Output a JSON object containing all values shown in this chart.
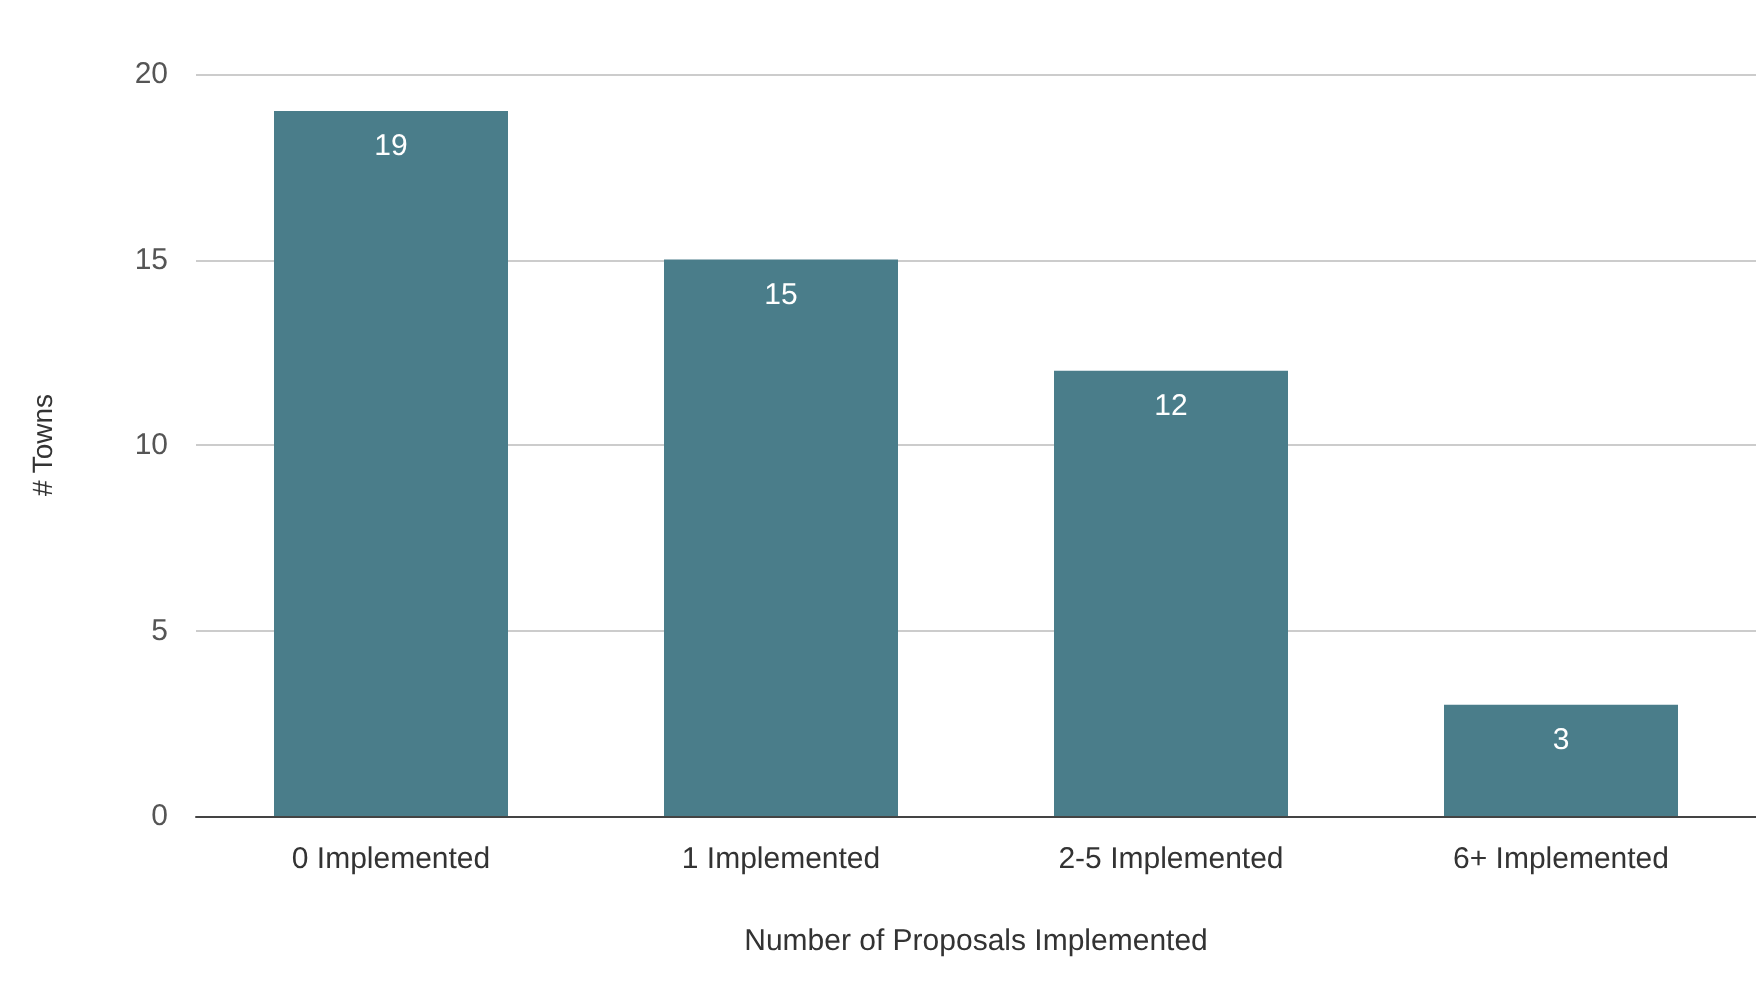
{
  "chart_data": {
    "type": "bar",
    "xlabel": "Number of Proposals Implemented",
    "ylabel": "# Towns",
    "categories": [
      "0 Implemented",
      "1 Implemented",
      "2-5 Implemented",
      "6+ Implemented"
    ],
    "values": [
      19,
      15,
      12,
      3
    ],
    "color": "#4a7d8a",
    "ylim": [
      0,
      20
    ],
    "yticks": [
      0,
      5,
      10,
      15,
      20
    ],
    "grid": "y",
    "data_labels": true
  }
}
